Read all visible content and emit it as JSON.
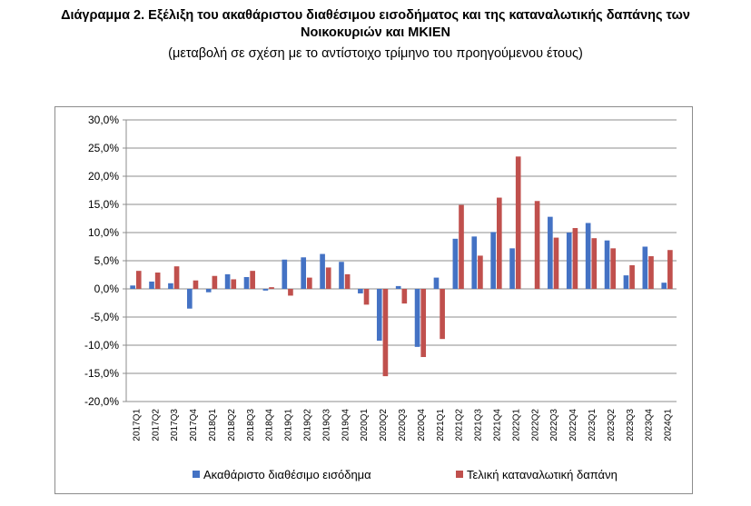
{
  "chart_data": {
    "type": "bar",
    "title_line1": "Διάγραμμα 2. Εξέλιξη του ακαθάριστου διαθέσιμου εισοδήματος και της καταναλωτικής δαπάνης των",
    "title_line2": "Νοικοκυριών και ΜΚΙΕΝ",
    "subtitle": "(μεταβολή σε σχέση με το αντίστοιχο τρίμηνο του προηγούμενου έτους)",
    "ylim": [
      -20,
      30
    ],
    "yticks": [
      "30,0%",
      "25,0%",
      "20,0%",
      "15,0%",
      "10,0%",
      "5,0%",
      "0,0%",
      "-5,0%",
      "-10,0%",
      "-15,0%",
      "-20,0%"
    ],
    "grid": true,
    "legend_position": "bottom",
    "categories": [
      "2017Q1",
      "2017Q2",
      "2017Q3",
      "2017Q4",
      "2018Q1",
      "2018Q2",
      "2018Q3",
      "2018Q4",
      "2019Q1",
      "2019Q2",
      "2019Q3",
      "2019Q4",
      "2020Q1",
      "2020Q2",
      "2020Q3",
      "2020Q4",
      "2021Q1",
      "2021Q2",
      "2021Q3",
      "2021Q4",
      "2022Q1",
      "2022Q2",
      "2022Q3",
      "2022Q4",
      "2023Q1",
      "2023Q2",
      "2023Q3",
      "2023Q4",
      "2024Q1"
    ],
    "series": [
      {
        "name": "Ακαθάριστο διαθέσιμο εισόδημα",
        "color": "#4472c4",
        "values": [
          0.6,
          1.3,
          1.0,
          -3.5,
          -0.6,
          2.6,
          2.1,
          -0.3,
          5.2,
          5.6,
          6.2,
          4.8,
          -0.8,
          -9.2,
          0.5,
          -10.3,
          2.0,
          8.9,
          9.3,
          10.1,
          7.2,
          0.0,
          12.8,
          10.0,
          11.7,
          8.6,
          2.4,
          7.5,
          1.1
        ]
      },
      {
        "name": "Τελική καταναλωτική δαπάνη",
        "color": "#c0504d",
        "values": [
          3.2,
          2.9,
          4.0,
          1.5,
          2.3,
          1.7,
          3.2,
          0.3,
          -1.2,
          2.0,
          3.8,
          2.6,
          -2.8,
          -15.5,
          -2.6,
          -12.1,
          -8.9,
          14.9,
          5.9,
          16.2,
          23.5,
          15.6,
          9.1,
          10.8,
          9.0,
          7.2,
          4.2,
          5.8,
          6.9
        ]
      }
    ]
  }
}
